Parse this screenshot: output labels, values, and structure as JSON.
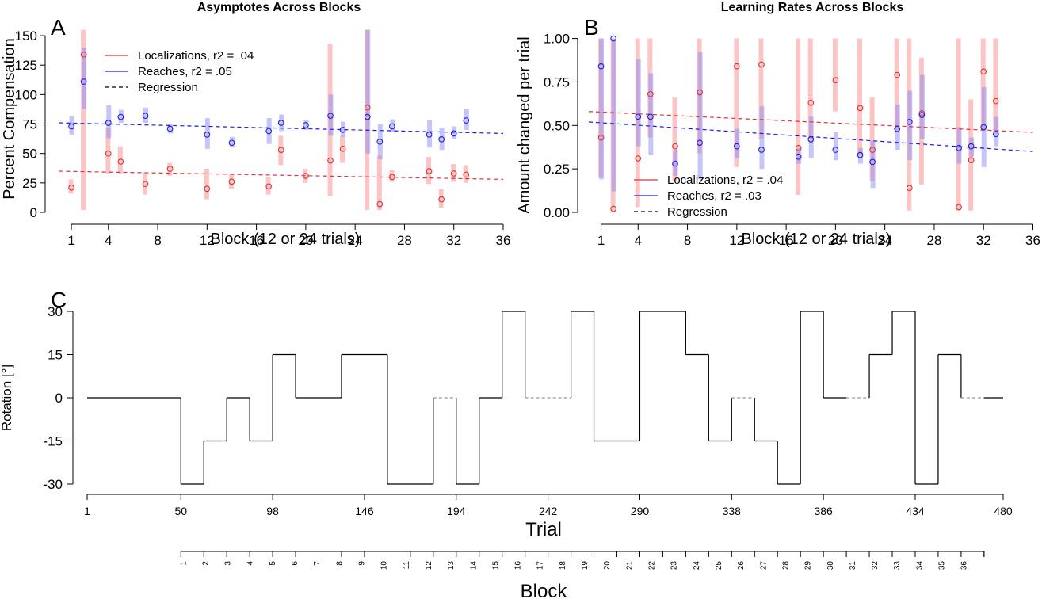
{
  "chart_data": [
    {
      "type": "scatter",
      "panel_letter": "A",
      "title": "Asymptotes Across Blocks",
      "xlabel": "Block (12 or 24 trials)",
      "ylabel": "Percent Compensation",
      "xlim": [
        0,
        36
      ],
      "ylim": [
        0,
        155
      ],
      "xticks": [
        1,
        4,
        8,
        12,
        16,
        20,
        24,
        28,
        32,
        36
      ],
      "yticks": [
        0,
        25,
        50,
        75,
        100,
        125,
        150
      ],
      "legend_position": "top-left",
      "legend": [
        {
          "label": "Localizations, r2 = .04",
          "color": "#e03030",
          "style": "solid"
        },
        {
          "label": "Reaches, r2 = .05",
          "color": "#1c1ce0",
          "style": "solid"
        },
        {
          "label": "Regression",
          "color": "#000000",
          "style": "dashed"
        }
      ],
      "series": [
        {
          "name": "Localizations",
          "color": "#e03030",
          "points": [
            {
              "x": 1,
              "y": 21,
              "lo": 16,
              "hi": 28
            },
            {
              "x": 2,
              "y": 134,
              "lo": 2,
              "hi": 155
            },
            {
              "x": 4,
              "y": 50,
              "lo": 33,
              "hi": 72
            },
            {
              "x": 5,
              "y": 43,
              "lo": 33,
              "hi": 56
            },
            {
              "x": 7,
              "y": 24,
              "lo": 15,
              "hi": 34
            },
            {
              "x": 9,
              "y": 37,
              "lo": 31,
              "hi": 42
            },
            {
              "x": 12,
              "y": 20,
              "lo": 11,
              "hi": 37
            },
            {
              "x": 14,
              "y": 26,
              "lo": 20,
              "hi": 32
            },
            {
              "x": 17,
              "y": 22,
              "lo": 15,
              "hi": 30
            },
            {
              "x": 18,
              "y": 53,
              "lo": 40,
              "hi": 65
            },
            {
              "x": 20,
              "y": 31,
              "lo": 25,
              "hi": 37
            },
            {
              "x": 22,
              "y": 44,
              "lo": 14,
              "hi": 143
            },
            {
              "x": 23,
              "y": 54,
              "lo": 42,
              "hi": 65
            },
            {
              "x": 25,
              "y": 89,
              "lo": 2,
              "hi": 155
            },
            {
              "x": 26,
              "y": 7,
              "lo": 2,
              "hi": 48
            },
            {
              "x": 27,
              "y": 30,
              "lo": 26,
              "hi": 36
            },
            {
              "x": 30,
              "y": 35,
              "lo": 24,
              "hi": 47
            },
            {
              "x": 31,
              "y": 11,
              "lo": 4,
              "hi": 20
            },
            {
              "x": 32,
              "y": 33,
              "lo": 26,
              "hi": 41
            },
            {
              "x": 33,
              "y": 32,
              "lo": 25,
              "hi": 40
            }
          ],
          "regression": {
            "x0": 0,
            "y0": 35,
            "x1": 36,
            "y1": 28
          }
        },
        {
          "name": "Reaches",
          "color": "#1c1ce0",
          "points": [
            {
              "x": 1,
              "y": 73,
              "lo": 66,
              "hi": 82
            },
            {
              "x": 2,
              "y": 111,
              "lo": 88,
              "hi": 140
            },
            {
              "x": 4,
              "y": 76,
              "lo": 63,
              "hi": 91
            },
            {
              "x": 5,
              "y": 81,
              "lo": 76,
              "hi": 87
            },
            {
              "x": 7,
              "y": 82,
              "lo": 76,
              "hi": 89
            },
            {
              "x": 9,
              "y": 71,
              "lo": 67,
              "hi": 75
            },
            {
              "x": 12,
              "y": 66,
              "lo": 54,
              "hi": 80
            },
            {
              "x": 14,
              "y": 59,
              "lo": 55,
              "hi": 64
            },
            {
              "x": 17,
              "y": 69,
              "lo": 58,
              "hi": 80
            },
            {
              "x": 18,
              "y": 76,
              "lo": 69,
              "hi": 83
            },
            {
              "x": 20,
              "y": 74,
              "lo": 70,
              "hi": 78
            },
            {
              "x": 22,
              "y": 82,
              "lo": 65,
              "hi": 100
            },
            {
              "x": 23,
              "y": 70,
              "lo": 64,
              "hi": 77
            },
            {
              "x": 25,
              "y": 81,
              "lo": 50,
              "hi": 155
            },
            {
              "x": 26,
              "y": 60,
              "lo": 45,
              "hi": 75
            },
            {
              "x": 27,
              "y": 73,
              "lo": 68,
              "hi": 79
            },
            {
              "x": 30,
              "y": 66,
              "lo": 55,
              "hi": 78
            },
            {
              "x": 31,
              "y": 62,
              "lo": 53,
              "hi": 72
            },
            {
              "x": 32,
              "y": 67,
              "lo": 62,
              "hi": 73
            },
            {
              "x": 33,
              "y": 78,
              "lo": 70,
              "hi": 88
            }
          ],
          "regression": {
            "x0": 0,
            "y0": 76,
            "x1": 36,
            "y1": 67
          }
        }
      ]
    },
    {
      "type": "scatter",
      "panel_letter": "B",
      "title": "Learning Rates Across Blocks",
      "xlabel": "Block (12 or 24 trials)",
      "ylabel": "Amount changed per trial",
      "xlim": [
        0,
        36
      ],
      "ylim": [
        0,
        1.03
      ],
      "xticks": [
        1,
        4,
        8,
        12,
        16,
        20,
        24,
        28,
        32,
        36
      ],
      "yticks": [
        0,
        0.25,
        0.5,
        0.75,
        1.0
      ],
      "ytick_labels": [
        "0.00",
        "0.25",
        "0.50",
        "0.75",
        "1.00"
      ],
      "legend_position": "bottom-center",
      "legend": [
        {
          "label": "Localizations, r2 = .04",
          "color": "#e03030",
          "style": "solid"
        },
        {
          "label": "Reaches, r2 = .03",
          "color": "#1c1ce0",
          "style": "solid"
        },
        {
          "label": "Regression",
          "color": "#000000",
          "style": "dashed"
        }
      ],
      "series": [
        {
          "name": "Localizations",
          "color": "#e03030",
          "points": [
            {
              "x": 1,
              "y": 0.43,
              "lo": 0.2,
              "hi": 1.0
            },
            {
              "x": 2,
              "y": 0.02,
              "lo": 0.01,
              "hi": 1.0
            },
            {
              "x": 4,
              "y": 0.31,
              "lo": 0.03,
              "hi": 1.0
            },
            {
              "x": 5,
              "y": 0.68,
              "lo": 0.43,
              "hi": 1.0
            },
            {
              "x": 7,
              "y": 0.38,
              "lo": 0.18,
              "hi": 0.66
            },
            {
              "x": 9,
              "y": 0.69,
              "lo": 0.34,
              "hi": 1.0
            },
            {
              "x": 12,
              "y": 0.84,
              "lo": 0.26,
              "hi": 1.0
            },
            {
              "x": 14,
              "y": 0.85,
              "lo": 0.42,
              "hi": 1.0
            },
            {
              "x": 17,
              "y": 0.37,
              "lo": 0.1,
              "hi": 1.0
            },
            {
              "x": 18,
              "y": 0.63,
              "lo": 0.42,
              "hi": 1.0
            },
            {
              "x": 20,
              "y": 0.76,
              "lo": 0.58,
              "hi": 1.0
            },
            {
              "x": 22,
              "y": 0.6,
              "lo": 0.33,
              "hi": 1.0
            },
            {
              "x": 23,
              "y": 0.36,
              "lo": 0.18,
              "hi": 0.66
            },
            {
              "x": 25,
              "y": 0.79,
              "lo": 0.47,
              "hi": 1.0
            },
            {
              "x": 26,
              "y": 0.14,
              "lo": 0.01,
              "hi": 1.0
            },
            {
              "x": 27,
              "y": 0.57,
              "lo": 0.16,
              "hi": 0.89
            },
            {
              "x": 30,
              "y": 0.03,
              "lo": 0.01,
              "hi": 1.0
            },
            {
              "x": 31,
              "y": 0.3,
              "lo": 0.01,
              "hi": 0.65
            },
            {
              "x": 32,
              "y": 0.81,
              "lo": 0.47,
              "hi": 1.0
            },
            {
              "x": 33,
              "y": 0.64,
              "lo": 0.45,
              "hi": 1.0
            }
          ],
          "regression": {
            "x0": 0,
            "y0": 0.58,
            "x1": 36,
            "y1": 0.46
          }
        },
        {
          "name": "Reaches",
          "color": "#1c1ce0",
          "points": [
            {
              "x": 1,
              "y": 0.84,
              "lo": 0.19,
              "hi": 1.0
            },
            {
              "x": 2,
              "y": 1.0,
              "lo": 0.12,
              "hi": 1.0
            },
            {
              "x": 4,
              "y": 0.55,
              "lo": 0.38,
              "hi": 0.88
            },
            {
              "x": 5,
              "y": 0.55,
              "lo": 0.33,
              "hi": 0.8
            },
            {
              "x": 7,
              "y": 0.28,
              "lo": 0.21,
              "hi": 0.36
            },
            {
              "x": 9,
              "y": 0.4,
              "lo": 0.19,
              "hi": 0.92
            },
            {
              "x": 12,
              "y": 0.38,
              "lo": 0.31,
              "hi": 0.48
            },
            {
              "x": 14,
              "y": 0.36,
              "lo": 0.25,
              "hi": 0.61
            },
            {
              "x": 17,
              "y": 0.32,
              "lo": 0.28,
              "hi": 0.37
            },
            {
              "x": 18,
              "y": 0.42,
              "lo": 0.31,
              "hi": 0.55
            },
            {
              "x": 20,
              "y": 0.36,
              "lo": 0.3,
              "hi": 0.46
            },
            {
              "x": 22,
              "y": 0.33,
              "lo": 0.28,
              "hi": 0.37
            },
            {
              "x": 23,
              "y": 0.29,
              "lo": 0.14,
              "hi": 0.41
            },
            {
              "x": 25,
              "y": 0.48,
              "lo": 0.36,
              "hi": 0.62
            },
            {
              "x": 26,
              "y": 0.52,
              "lo": 0.3,
              "hi": 0.7
            },
            {
              "x": 27,
              "y": 0.56,
              "lo": 0.42,
              "hi": 0.79
            },
            {
              "x": 30,
              "y": 0.37,
              "lo": 0.28,
              "hi": 0.49
            },
            {
              "x": 31,
              "y": 0.38,
              "lo": 0.32,
              "hi": 0.43
            },
            {
              "x": 32,
              "y": 0.49,
              "lo": 0.26,
              "hi": 0.72
            },
            {
              "x": 33,
              "y": 0.45,
              "lo": 0.38,
              "hi": 0.55
            }
          ],
          "regression": {
            "x0": 0,
            "y0": 0.52,
            "x1": 36,
            "y1": 0.35
          }
        }
      ]
    },
    {
      "type": "line",
      "panel_letter": "C",
      "xlabel": "Trial",
      "ylabel": "Rotation [°]",
      "secondary_xlabel": "Block",
      "xlim": [
        1,
        480
      ],
      "ylim": [
        -30,
        30
      ],
      "xticks": [
        1,
        50,
        98,
        146,
        194,
        242,
        290,
        338,
        386,
        434,
        480
      ],
      "yticks": [
        -30,
        -15,
        0,
        15,
        30
      ],
      "block_ticks": [
        "1",
        "2",
        "3",
        "4",
        "5",
        "6",
        "7",
        "8",
        "9",
        "10",
        "11",
        "12",
        "13",
        "14",
        "15",
        "16",
        "17",
        "18",
        "19",
        "20",
        "21",
        "22",
        "23",
        "24",
        "25",
        "26",
        "27",
        "28",
        "29",
        "30",
        "31",
        "32",
        "33",
        "34",
        "35",
        "36"
      ],
      "block_boundaries": [
        50,
        62,
        74,
        86,
        98,
        110,
        134,
        146,
        170,
        182,
        194,
        206,
        218,
        230,
        242,
        254,
        266,
        278,
        290,
        302,
        314,
        326,
        338,
        350,
        362,
        374,
        386,
        398,
        410,
        422,
        434,
        446,
        458,
        470
      ],
      "rotation_schedule": [
        {
          "start": 1,
          "end": 50,
          "rotation": 0,
          "dashed": false
        },
        {
          "start": 50,
          "end": 62,
          "rotation": -30,
          "dashed": false
        },
        {
          "start": 62,
          "end": 74,
          "rotation": -15,
          "dashed": false
        },
        {
          "start": 74,
          "end": 86,
          "rotation": 0,
          "dashed": false
        },
        {
          "start": 86,
          "end": 98,
          "rotation": -15,
          "dashed": false
        },
        {
          "start": 98,
          "end": 110,
          "rotation": 15,
          "dashed": false
        },
        {
          "start": 110,
          "end": 134,
          "rotation": 0,
          "dashed": false
        },
        {
          "start": 134,
          "end": 158,
          "rotation": 15,
          "dashed": false
        },
        {
          "start": 158,
          "end": 182,
          "rotation": -30,
          "dashed": false
        },
        {
          "start": 182,
          "end": 194,
          "rotation": 0,
          "dashed": true
        },
        {
          "start": 194,
          "end": 206,
          "rotation": -30,
          "dashed": false
        },
        {
          "start": 206,
          "end": 218,
          "rotation": 0,
          "dashed": false
        },
        {
          "start": 218,
          "end": 230,
          "rotation": 30,
          "dashed": false
        },
        {
          "start": 230,
          "end": 254,
          "rotation": 0,
          "dashed": true
        },
        {
          "start": 254,
          "end": 266,
          "rotation": 30,
          "dashed": false
        },
        {
          "start": 266,
          "end": 290,
          "rotation": -15,
          "dashed": false
        },
        {
          "start": 290,
          "end": 314,
          "rotation": 30,
          "dashed": false
        },
        {
          "start": 314,
          "end": 326,
          "rotation": 15,
          "dashed": false
        },
        {
          "start": 326,
          "end": 338,
          "rotation": -15,
          "dashed": false
        },
        {
          "start": 338,
          "end": 350,
          "rotation": 0,
          "dashed": true
        },
        {
          "start": 350,
          "end": 362,
          "rotation": -15,
          "dashed": false
        },
        {
          "start": 362,
          "end": 374,
          "rotation": -30,
          "dashed": false
        },
        {
          "start": 374,
          "end": 386,
          "rotation": 30,
          "dashed": false
        },
        {
          "start": 386,
          "end": 398,
          "rotation": 0,
          "dashed": false
        },
        {
          "start": 398,
          "end": 410,
          "rotation": 0,
          "dashed": true
        },
        {
          "start": 410,
          "end": 422,
          "rotation": 15,
          "dashed": false
        },
        {
          "start": 422,
          "end": 434,
          "rotation": 30,
          "dashed": false
        },
        {
          "start": 434,
          "end": 446,
          "rotation": -30,
          "dashed": false
        },
        {
          "start": 446,
          "end": 458,
          "rotation": 15,
          "dashed": false
        },
        {
          "start": 458,
          "end": 470,
          "rotation": 0,
          "dashed": true
        },
        {
          "start": 470,
          "end": 480,
          "rotation": 0,
          "dashed": false
        }
      ]
    }
  ]
}
